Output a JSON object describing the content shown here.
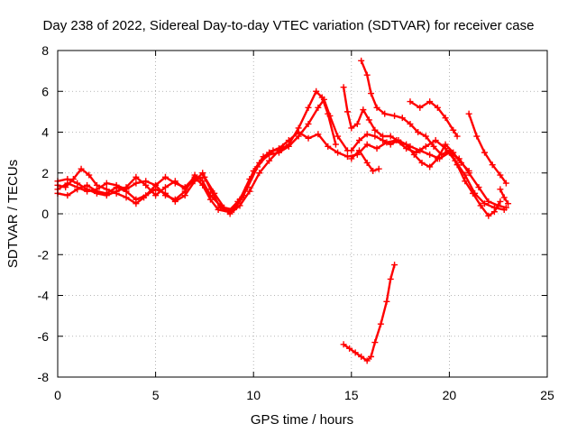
{
  "chart_data": {
    "type": "scatter",
    "title": "Day 238 of 2022, Sidereal Day-to-day VTEC variation (SDTVAR) for receiver case",
    "xlabel": "GPS time / hours",
    "ylabel": "SDTVAR / TECUs",
    "xlim": [
      0,
      25
    ],
    "ylim": [
      -8,
      8
    ],
    "xticks": [
      "0",
      "5",
      "10",
      "15",
      "20",
      "25"
    ],
    "yticks": [
      "-8",
      "-6",
      "-4",
      "-2",
      "0",
      "2",
      "4",
      "6",
      "8"
    ],
    "grid": true,
    "legend": "none",
    "marker": "plus",
    "color": "#ff0000",
    "series": [
      {
        "points": [
          [
            0.0,
            1.4
          ],
          [
            0.4,
            1.3
          ],
          [
            0.8,
            1.7
          ],
          [
            1.2,
            2.2
          ],
          [
            1.6,
            1.9
          ],
          [
            2.0,
            1.4
          ],
          [
            2.5,
            1.2
          ],
          [
            3.0,
            1.0
          ],
          [
            3.5,
            0.8
          ],
          [
            4.0,
            0.5
          ],
          [
            4.4,
            0.8
          ],
          [
            5.0,
            1.4
          ],
          [
            5.5,
            1.8
          ],
          [
            6.0,
            1.5
          ],
          [
            6.5,
            1.3
          ],
          [
            7.0,
            1.8
          ],
          [
            7.4,
            1.4
          ],
          [
            7.8,
            0.7
          ],
          [
            8.2,
            0.2
          ],
          [
            8.7,
            0.1
          ],
          [
            9.2,
            0.6
          ],
          [
            9.7,
            1.3
          ],
          [
            10.2,
            2.3
          ],
          [
            10.8,
            3.0
          ],
          [
            11.3,
            3.2
          ],
          [
            11.8,
            3.6
          ],
          [
            12.3,
            4.0
          ],
          [
            12.8,
            3.7
          ],
          [
            13.3,
            3.9
          ],
          [
            13.8,
            3.3
          ],
          [
            14.3,
            3.0
          ],
          [
            14.8,
            2.8
          ],
          [
            15.3,
            2.9
          ],
          [
            15.8,
            3.4
          ],
          [
            16.3,
            3.2
          ],
          [
            16.8,
            3.5
          ],
          [
            17.3,
            3.6
          ],
          [
            17.8,
            3.2
          ],
          [
            18.3,
            3.0
          ],
          [
            18.8,
            3.3
          ],
          [
            19.3,
            3.6
          ],
          [
            19.8,
            3.2
          ],
          [
            20.3,
            2.6
          ],
          [
            20.8,
            1.9
          ],
          [
            21.3,
            1.0
          ],
          [
            21.8,
            0.5
          ],
          [
            22.3,
            0.3
          ],
          [
            22.8,
            0.2
          ]
        ]
      },
      {
        "points": [
          [
            0.0,
            1.0
          ],
          [
            0.5,
            0.9
          ],
          [
            1.0,
            1.2
          ],
          [
            1.5,
            1.4
          ],
          [
            2.0,
            1.1
          ],
          [
            2.5,
            1.0
          ],
          [
            3.0,
            1.3
          ],
          [
            3.5,
            1.1
          ],
          [
            4.0,
            0.7
          ],
          [
            4.5,
            0.9
          ],
          [
            5.0,
            1.2
          ],
          [
            5.5,
            1.0
          ],
          [
            6.0,
            0.6
          ],
          [
            6.5,
            0.9
          ],
          [
            7.0,
            1.6
          ],
          [
            7.4,
            2.0
          ],
          [
            7.8,
            1.2
          ],
          [
            8.3,
            0.3
          ],
          [
            8.8,
            0.1
          ],
          [
            9.3,
            0.7
          ],
          [
            9.8,
            1.7
          ],
          [
            10.3,
            2.5
          ],
          [
            10.8,
            2.9
          ],
          [
            11.3,
            3.0
          ],
          [
            11.8,
            3.3
          ],
          [
            12.3,
            3.8
          ],
          [
            12.8,
            4.4
          ],
          [
            13.3,
            5.2
          ],
          [
            13.6,
            5.6
          ],
          [
            13.9,
            4.8
          ],
          [
            14.3,
            3.8
          ],
          [
            14.8,
            3.1
          ]
        ]
      },
      {
        "points": [
          [
            0.0,
            1.2
          ],
          [
            0.5,
            1.5
          ],
          [
            1.0,
            1.3
          ],
          [
            1.5,
            1.1
          ],
          [
            2.0,
            1.2
          ],
          [
            2.5,
            1.5
          ],
          [
            3.0,
            1.4
          ],
          [
            3.5,
            1.2
          ],
          [
            4.0,
            1.5
          ],
          [
            4.5,
            1.6
          ],
          [
            5.0,
            1.4
          ],
          [
            5.5,
            0.9
          ],
          [
            6.0,
            0.7
          ],
          [
            6.5,
            1.1
          ],
          [
            7.0,
            1.9
          ],
          [
            7.4,
            1.6
          ],
          [
            7.8,
            0.9
          ],
          [
            8.3,
            0.4
          ],
          [
            8.8,
            0.0
          ],
          [
            9.3,
            0.4
          ],
          [
            9.8,
            1.1
          ],
          [
            10.3,
            2.0
          ],
          [
            10.8,
            2.6
          ],
          [
            11.3,
            3.1
          ],
          [
            11.8,
            3.4
          ],
          [
            12.3,
            4.2
          ],
          [
            12.8,
            5.2
          ],
          [
            13.2,
            6.0
          ],
          [
            13.5,
            5.7
          ],
          [
            13.8,
            4.9
          ],
          [
            14.2,
            3.4
          ]
        ]
      },
      {
        "points": [
          [
            0.0,
            1.6
          ],
          [
            0.5,
            1.7
          ],
          [
            1.0,
            1.5
          ],
          [
            1.5,
            1.2
          ],
          [
            2.0,
            1.0
          ],
          [
            2.5,
            0.9
          ],
          [
            3.0,
            1.1
          ],
          [
            3.5,
            1.3
          ],
          [
            4.0,
            1.8
          ],
          [
            4.5,
            1.4
          ],
          [
            5.0,
            0.9
          ],
          [
            5.5,
            1.3
          ],
          [
            6.0,
            1.6
          ],
          [
            6.5,
            1.2
          ],
          [
            7.0,
            1.7
          ],
          [
            7.5,
            1.8
          ],
          [
            8.0,
            1.0
          ],
          [
            8.5,
            0.3
          ],
          [
            9.0,
            0.2
          ],
          [
            9.5,
            0.9
          ],
          [
            10.0,
            2.1
          ],
          [
            10.5,
            2.8
          ],
          [
            11.0,
            3.1
          ],
          [
            11.5,
            3.3
          ]
        ]
      },
      {
        "points": [
          [
            14.6,
            6.2
          ],
          [
            14.8,
            5.0
          ],
          [
            15.0,
            4.2
          ],
          [
            15.3,
            4.4
          ],
          [
            15.6,
            5.1
          ],
          [
            15.9,
            4.6
          ],
          [
            16.2,
            4.1
          ],
          [
            16.6,
            3.8
          ],
          [
            17.0,
            3.8
          ],
          [
            17.5,
            3.5
          ],
          [
            18.0,
            3.3
          ],
          [
            18.5,
            3.1
          ],
          [
            19.0,
            2.9
          ],
          [
            19.5,
            2.7
          ],
          [
            20.0,
            3.0
          ],
          [
            20.5,
            2.7
          ],
          [
            21.0,
            2.0
          ],
          [
            21.5,
            1.3
          ],
          [
            22.0,
            0.6
          ],
          [
            22.5,
            0.4
          ],
          [
            22.9,
            0.3
          ]
        ]
      },
      {
        "points": [
          [
            15.5,
            7.5
          ],
          [
            15.8,
            6.8
          ],
          [
            16.0,
            5.9
          ],
          [
            16.3,
            5.2
          ],
          [
            16.7,
            4.9
          ],
          [
            17.2,
            4.8
          ],
          [
            17.6,
            4.7
          ],
          [
            18.0,
            4.4
          ],
          [
            18.4,
            4.0
          ],
          [
            18.8,
            3.8
          ],
          [
            19.2,
            3.3
          ],
          [
            19.6,
            2.9
          ],
          [
            20.0,
            3.1
          ],
          [
            20.4,
            2.4
          ],
          [
            20.8,
            1.6
          ],
          [
            21.2,
            1.0
          ],
          [
            21.6,
            0.4
          ],
          [
            22.0,
            -0.1
          ],
          [
            22.3,
            0.1
          ],
          [
            22.6,
            0.6
          ]
        ]
      },
      {
        "points": [
          [
            15.0,
            3.1
          ],
          [
            15.4,
            3.6
          ],
          [
            15.8,
            3.9
          ],
          [
            16.2,
            3.8
          ],
          [
            16.6,
            3.6
          ],
          [
            17.0,
            3.4
          ],
          [
            17.4,
            3.6
          ],
          [
            17.8,
            3.4
          ],
          [
            18.2,
            2.9
          ],
          [
            18.6,
            2.5
          ],
          [
            19.0,
            2.3
          ],
          [
            19.4,
            2.7
          ],
          [
            19.8,
            3.4
          ],
          [
            20.2,
            3.0
          ],
          [
            20.6,
            2.5
          ],
          [
            21.0,
            2.1
          ]
        ]
      },
      {
        "points": [
          [
            15.0,
            2.7
          ],
          [
            15.4,
            3.1
          ],
          [
            15.8,
            2.5
          ],
          [
            16.1,
            2.1
          ],
          [
            16.4,
            2.2
          ]
        ]
      },
      {
        "points": [
          [
            18.0,
            5.5
          ],
          [
            18.5,
            5.2
          ],
          [
            19.0,
            5.5
          ],
          [
            19.4,
            5.2
          ],
          [
            19.8,
            4.7
          ],
          [
            20.2,
            4.1
          ],
          [
            20.4,
            3.8
          ]
        ]
      },
      {
        "points": [
          [
            21.0,
            4.9
          ],
          [
            21.4,
            3.8
          ],
          [
            21.8,
            3.0
          ],
          [
            22.2,
            2.4
          ],
          [
            22.6,
            1.9
          ],
          [
            22.9,
            1.5
          ]
        ]
      },
      {
        "points": [
          [
            22.6,
            1.2
          ],
          [
            22.8,
            0.8
          ],
          [
            23.0,
            0.5
          ]
        ]
      },
      {
        "points": [
          [
            14.6,
            -6.4
          ],
          [
            14.9,
            -6.6
          ],
          [
            15.2,
            -6.8
          ],
          [
            15.5,
            -7.0
          ],
          [
            15.8,
            -7.2
          ],
          [
            16.0,
            -7.0
          ],
          [
            16.2,
            -6.3
          ],
          [
            16.5,
            -5.4
          ],
          [
            16.8,
            -4.3
          ],
          [
            17.0,
            -3.2
          ],
          [
            17.2,
            -2.5
          ]
        ]
      }
    ]
  }
}
